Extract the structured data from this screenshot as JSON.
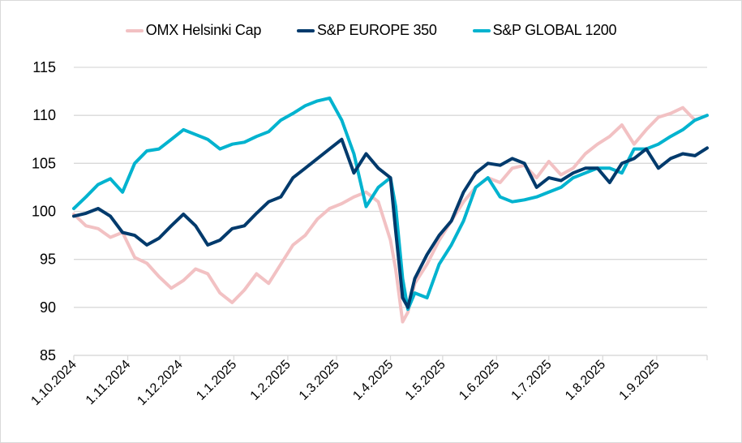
{
  "chart_data": {
    "type": "line",
    "title": "",
    "xlabel": "",
    "ylabel": "",
    "ylim": [
      85,
      115
    ],
    "yticks": [
      85,
      90,
      95,
      100,
      105,
      110,
      115
    ],
    "ytick_labels": [
      "85",
      "90",
      "95",
      "100",
      "105",
      "110",
      "115"
    ],
    "xlim": [
      "2024-10-01",
      "2025-09-30"
    ],
    "xticks": [
      "2024-10-01",
      "2024-11-01",
      "2024-12-01",
      "2025-01-01",
      "2025-02-01",
      "2025-03-01",
      "2025-04-01",
      "2025-05-01",
      "2025-06-01",
      "2025-07-01",
      "2025-08-01",
      "2025-09-01"
    ],
    "xtick_labels": [
      "1.10.2024",
      "1.11.2024",
      "1.12.2024",
      "1.1.2025",
      "1.2.2025",
      "1.3.2025",
      "1.4.2025",
      "1.5.2025",
      "1.6.2025",
      "1.7.2025",
      "1.8.2025",
      "1.9.2025"
    ],
    "grid": "horizontal",
    "legend_position": "top",
    "x": [
      "2024-10-01",
      "2024-10-08",
      "2024-10-15",
      "2024-10-22",
      "2024-10-29",
      "2024-11-05",
      "2024-11-12",
      "2024-11-19",
      "2024-11-26",
      "2024-12-03",
      "2024-12-10",
      "2024-12-17",
      "2024-12-24",
      "2024-12-31",
      "2025-01-07",
      "2025-01-14",
      "2025-01-21",
      "2025-01-28",
      "2025-02-04",
      "2025-02-11",
      "2025-02-18",
      "2025-02-25",
      "2025-03-04",
      "2025-03-11",
      "2025-03-18",
      "2025-03-25",
      "2025-04-01",
      "2025-04-04",
      "2025-04-08",
      "2025-04-11",
      "2025-04-15",
      "2025-04-22",
      "2025-04-29",
      "2025-05-06",
      "2025-05-13",
      "2025-05-20",
      "2025-05-27",
      "2025-06-03",
      "2025-06-10",
      "2025-06-17",
      "2025-06-24",
      "2025-07-01",
      "2025-07-08",
      "2025-07-15",
      "2025-07-22",
      "2025-07-29",
      "2025-08-05",
      "2025-08-12",
      "2025-08-19",
      "2025-08-26",
      "2025-09-02",
      "2025-09-09",
      "2025-09-16",
      "2025-09-23",
      "2025-09-30"
    ],
    "series": [
      {
        "name": "OMX Helsinki Cap",
        "color": "#f2c1c3",
        "values": [
          99.7,
          98.5,
          98.2,
          97.3,
          97.8,
          95.2,
          94.6,
          93.2,
          92.0,
          92.8,
          94.0,
          93.5,
          91.5,
          90.5,
          91.8,
          93.5,
          92.5,
          94.5,
          96.5,
          97.5,
          99.2,
          100.3,
          100.8,
          101.5,
          102.0,
          101.0,
          97.0,
          94.0,
          88.5,
          89.5,
          92.5,
          94.5,
          97.0,
          99.0,
          101.0,
          102.5,
          103.5,
          103.0,
          104.5,
          104.8,
          103.5,
          105.2,
          103.8,
          104.5,
          106.0,
          107.0,
          107.8,
          109.0,
          107.0,
          108.5,
          109.8,
          110.2,
          110.8,
          109.5,
          110.0
        ]
      },
      {
        "name": "S&P EUROPE 350",
        "color": "#003a6c",
        "values": [
          99.5,
          99.8,
          100.3,
          99.5,
          97.8,
          97.5,
          96.5,
          97.2,
          98.5,
          99.7,
          98.5,
          96.5,
          97.0,
          98.2,
          98.5,
          99.8,
          101.0,
          101.5,
          103.5,
          104.5,
          105.5,
          106.5,
          107.5,
          104.0,
          106.0,
          104.5,
          103.5,
          98.0,
          91.0,
          90.0,
          93.0,
          95.5,
          97.5,
          99.0,
          102.0,
          104.0,
          105.0,
          104.8,
          105.5,
          105.0,
          102.5,
          103.5,
          103.2,
          104.0,
          104.5,
          104.5,
          103.0,
          105.0,
          105.5,
          106.5,
          104.5,
          105.5,
          106.0,
          105.8,
          106.6
        ]
      },
      {
        "name": "S&P GLOBAL 1200",
        "color": "#00b3cf",
        "values": [
          100.3,
          101.5,
          102.8,
          103.4,
          102.0,
          105.0,
          106.3,
          106.5,
          107.5,
          108.5,
          108.0,
          107.5,
          106.5,
          107.0,
          107.2,
          107.8,
          108.3,
          109.5,
          110.2,
          111.0,
          111.5,
          111.8,
          109.5,
          106.0,
          100.5,
          102.5,
          103.5,
          100.5,
          93.0,
          89.8,
          91.5,
          91.0,
          94.5,
          96.5,
          99.0,
          102.5,
          103.5,
          101.5,
          101.0,
          101.2,
          101.5,
          102.0,
          102.5,
          103.5,
          104.0,
          104.5,
          104.5,
          104.0,
          106.5,
          106.5,
          107.0,
          107.8,
          108.5,
          109.5,
          110.0
        ]
      }
    ]
  }
}
